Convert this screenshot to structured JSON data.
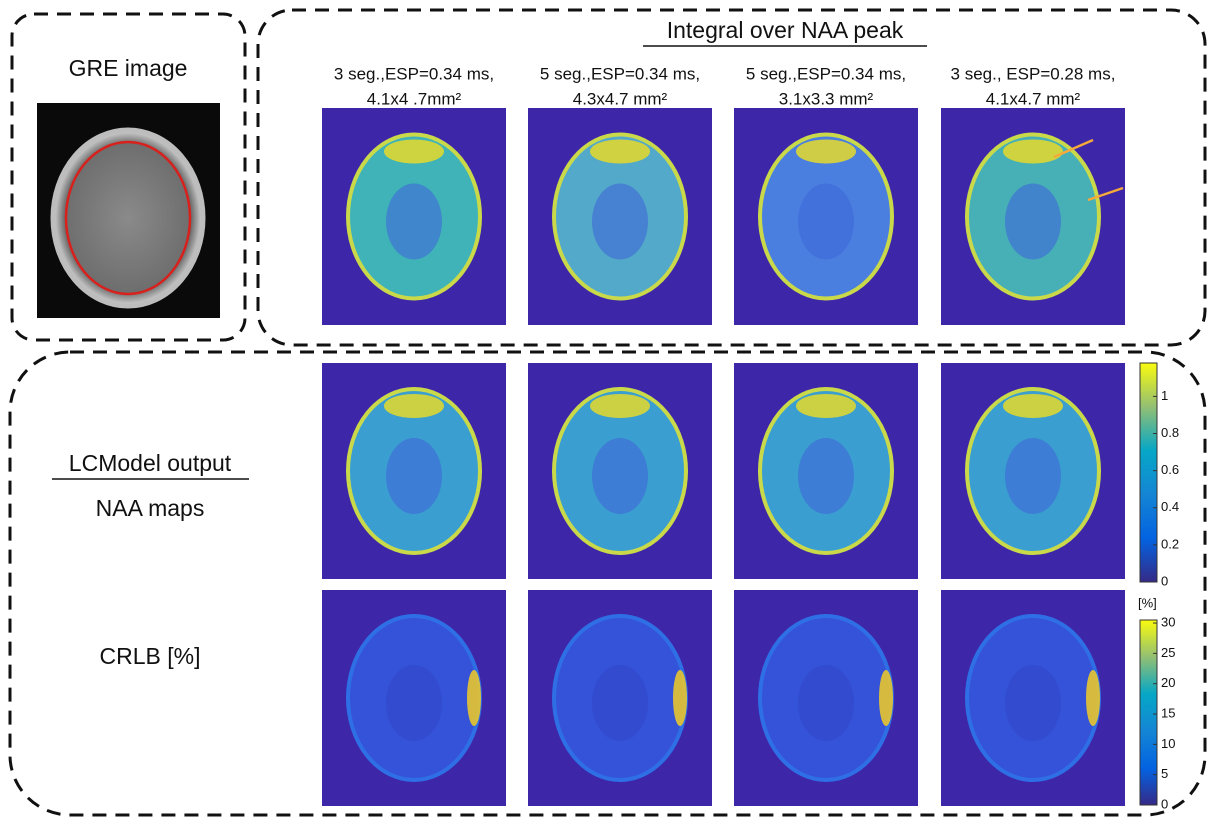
{
  "gre": {
    "title": "GRE image"
  },
  "integral": {
    "title": "Integral over NAA peak",
    "columns": [
      {
        "line1": "3 seg.,ESP=0.34 ms,",
        "line2": "4.1x4 .7mm²"
      },
      {
        "line1": "5 seg.,ESP=0.34 ms,",
        "line2": "4.3x4.7 mm²"
      },
      {
        "line1": "5 seg.,ESP=0.34 ms,",
        "line2": "3.1x3.3 mm²"
      },
      {
        "line1": "3 seg., ESP=0.28 ms,",
        "line2": "4.1x4.7 mm²"
      }
    ]
  },
  "lcmodel": {
    "title": "LCModel output",
    "rows": [
      "NAA maps",
      "CRLB [%]"
    ]
  },
  "colorbars": [
    {
      "lim": [
        0,
        1.18
      ],
      "ticks": [
        0,
        0.2,
        0.4,
        0.6,
        0.8,
        1
      ]
    },
    {
      "unit": "[%]",
      "lim": [
        0,
        30.5
      ],
      "ticks": [
        0,
        5,
        10,
        15,
        20,
        25,
        30
      ]
    }
  ]
}
